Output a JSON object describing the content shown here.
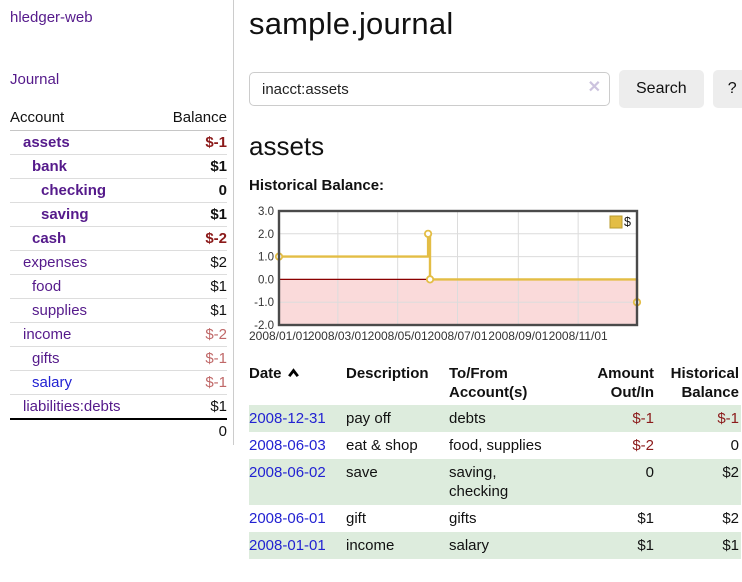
{
  "app": {
    "brand": "hledger-web",
    "nav_journal": "Journal"
  },
  "sidebar": {
    "columns": {
      "account": "Account",
      "balance": "Balance"
    },
    "accounts": [
      {
        "name": "assets",
        "depth": 1,
        "bold": true,
        "link": "purple",
        "balance": "$-1",
        "tone": "neg-strong"
      },
      {
        "name": "bank",
        "depth": 2,
        "bold": true,
        "link": "purple",
        "balance": "$1",
        "tone": "normal"
      },
      {
        "name": "checking",
        "depth": 3,
        "bold": true,
        "link": "purple",
        "balance": "0",
        "tone": "normal"
      },
      {
        "name": "saving",
        "depth": 3,
        "bold": true,
        "link": "purple",
        "balance": "$1",
        "tone": "normal"
      },
      {
        "name": "cash",
        "depth": 2,
        "bold": true,
        "link": "purple",
        "balance": "$-2",
        "tone": "neg-strong"
      },
      {
        "name": "expenses",
        "depth": 1,
        "bold": false,
        "link": "purple",
        "balance": "$2",
        "tone": "normal"
      },
      {
        "name": "food",
        "depth": 2,
        "bold": false,
        "link": "purple",
        "balance": "$1",
        "tone": "normal"
      },
      {
        "name": "supplies",
        "depth": 2,
        "bold": false,
        "link": "purple",
        "balance": "$1",
        "tone": "normal"
      },
      {
        "name": "income",
        "depth": 1,
        "bold": false,
        "link": "purple",
        "balance": "$-2",
        "tone": "neg-soft"
      },
      {
        "name": "gifts",
        "depth": 2,
        "bold": false,
        "link": "purple",
        "balance": "$-1",
        "tone": "neg-soft"
      },
      {
        "name": "salary",
        "depth": 2,
        "bold": false,
        "link": "blue",
        "balance": "$-1",
        "tone": "neg-soft"
      },
      {
        "name": "liabilities:debts",
        "depth": 1,
        "bold": false,
        "link": "purple",
        "balance": "$1",
        "tone": "normal"
      }
    ],
    "total": "0"
  },
  "main": {
    "title": "sample.journal",
    "search": {
      "value": "inacct:assets",
      "button_label": "Search",
      "help_label": "?"
    },
    "account_heading": "assets",
    "chart_heading": "Historical Balance:"
  },
  "icons": {
    "clear_search": "✕",
    "sort_ascending": "chevron-up"
  },
  "chart_data": {
    "type": "line",
    "title": "Historical Balance",
    "series": [
      {
        "name": "$",
        "color": "#e3bd45",
        "marker_fill": "#ffffff",
        "step": true,
        "points": [
          [
            "2008-01-01",
            1
          ],
          [
            "2008-06-01",
            2
          ],
          [
            "2008-06-03",
            0
          ],
          [
            "2008-12-31",
            -1
          ]
        ]
      }
    ],
    "x_range": [
      "2008-01-01",
      "2008-12-31"
    ],
    "x_ticks": [
      "2008/01/01",
      "2008/03/01",
      "2008/05/01",
      "2008/07/01",
      "2008/09/01",
      "2008/11/01"
    ],
    "y_ticks": [
      3.0,
      2.0,
      1.0,
      0.0,
      -1.0,
      -2.0
    ],
    "ylim": [
      -2,
      3
    ],
    "grid": true,
    "negative_fill": "#fadada",
    "zero_line_color": "#8b0000",
    "grid_color": "#dcdcdc",
    "border_color": "#4a4a4a",
    "legend_position": "top-right"
  },
  "register": {
    "headers": {
      "date": "Date",
      "description": "Description",
      "accounts": "To/From Account(s)",
      "amount": "Amount Out/In",
      "balance": "Historical Balance"
    },
    "rows": [
      {
        "date": "2008-12-31",
        "description": "pay off",
        "accounts": "debts",
        "amount": "$-1",
        "amount_tone": "neg-strong",
        "balance": "$-1",
        "balance_tone": "neg-strong",
        "shade": true
      },
      {
        "date": "2008-06-03",
        "description": "eat & shop",
        "accounts": "food, supplies",
        "amount": "$-2",
        "amount_tone": "neg-strong",
        "balance": "0",
        "balance_tone": "normal",
        "shade": false
      },
      {
        "date": "2008-06-02",
        "description": "save",
        "accounts": "saving,\nchecking",
        "amount": "0",
        "amount_tone": "normal",
        "balance": "$2",
        "balance_tone": "normal",
        "shade": true
      },
      {
        "date": "2008-06-01",
        "description": "gift",
        "accounts": "gifts",
        "amount": "$1",
        "amount_tone": "normal",
        "balance": "$2",
        "balance_tone": "normal",
        "shade": false
      },
      {
        "date": "2008-01-01",
        "description": "income",
        "accounts": "salary",
        "amount": "$1",
        "amount_tone": "normal",
        "balance": "$1",
        "balance_tone": "normal",
        "shade": true
      }
    ]
  }
}
